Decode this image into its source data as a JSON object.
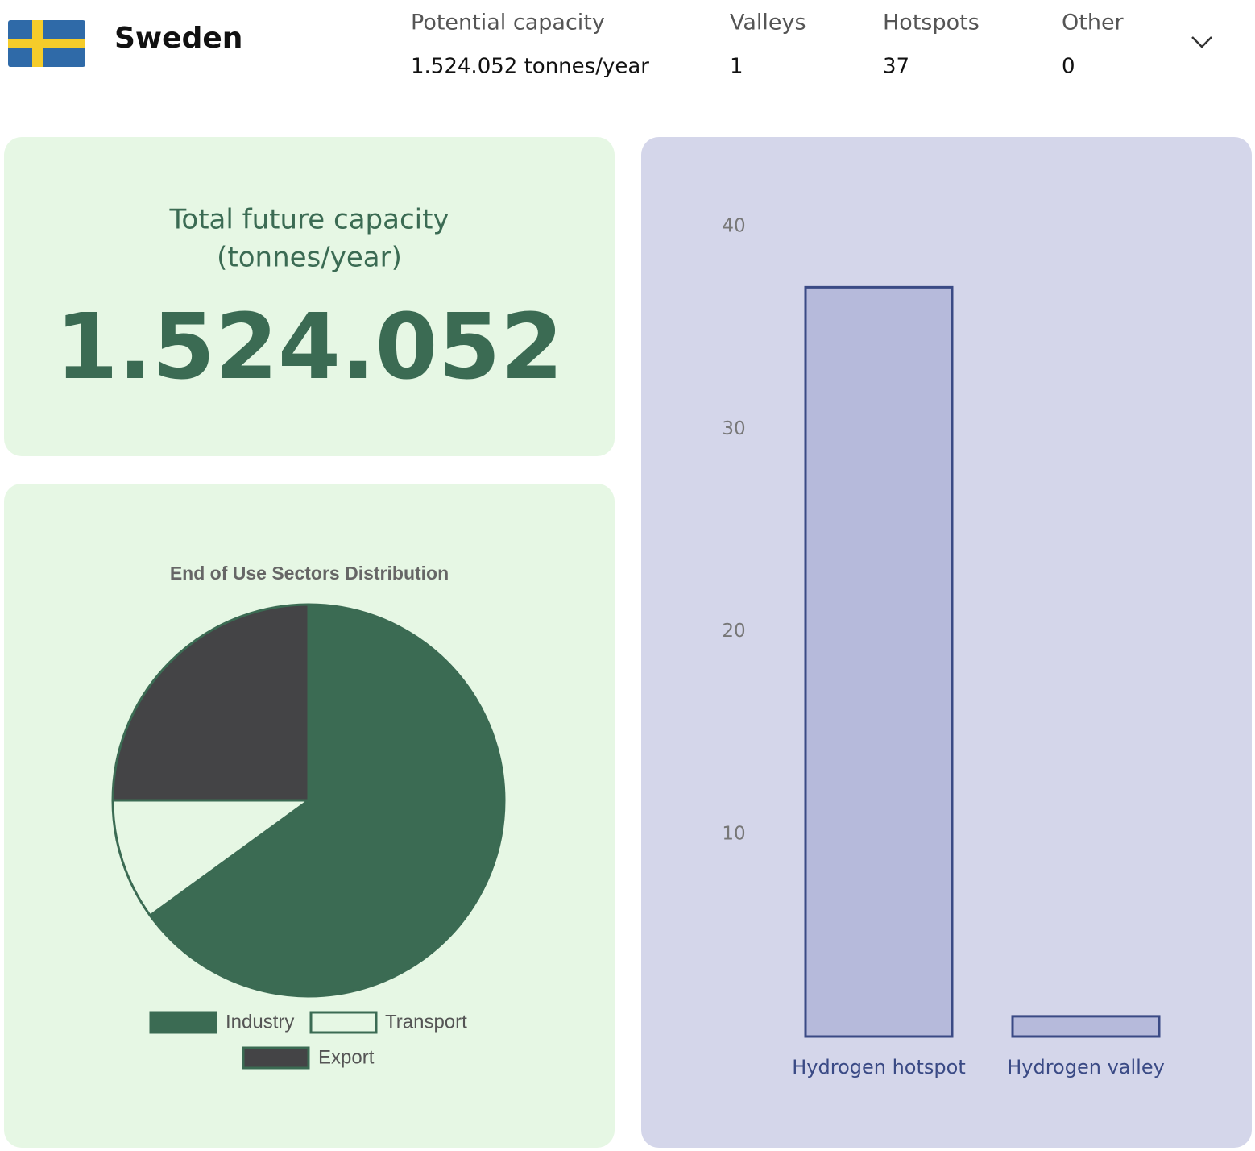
{
  "header": {
    "country": "Sweden",
    "stats": [
      {
        "label": "Potential capacity",
        "value": "1.524.052 tonnes/year"
      },
      {
        "label": "Valleys",
        "value": "1"
      },
      {
        "label": "Hotspots",
        "value": "37"
      },
      {
        "label": "Other",
        "value": "0"
      }
    ]
  },
  "capacity_card": {
    "title_lines": [
      "Total future capacity",
      "(tonnes/year)"
    ],
    "value": "1.524.052"
  },
  "chart_data": [
    {
      "type": "pie",
      "title": "End of Use Sectors Distribution",
      "categories": [
        "Industry",
        "Transport",
        "Export"
      ],
      "values": [
        65,
        10,
        25
      ],
      "colors": [
        "#3b6b53",
        "#e6f7e4",
        "#444446"
      ],
      "edge_color": "#3b6b53"
    },
    {
      "type": "bar",
      "categories": [
        "Hydrogen hotspot",
        "Hydrogen valley"
      ],
      "values": [
        37,
        1
      ],
      "color": "#b6badb",
      "edge_color": "#3a4a85",
      "ylim": [
        0,
        40
      ],
      "yticks": [
        10,
        20,
        30,
        40
      ],
      "grid": false
    }
  ]
}
